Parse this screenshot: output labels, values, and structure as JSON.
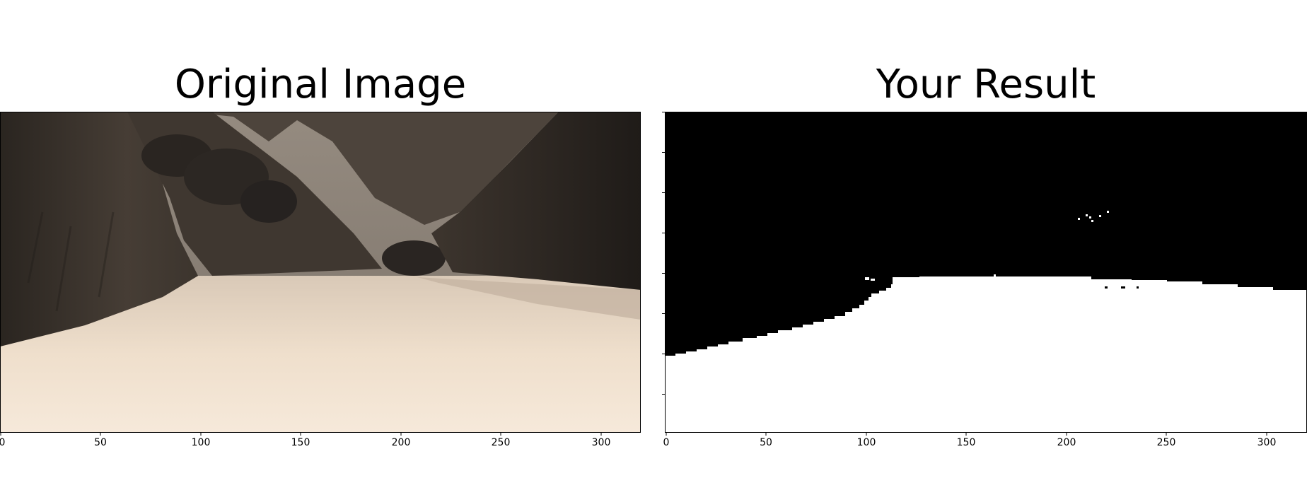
{
  "panels": {
    "left": {
      "title": "Original Image",
      "x_ticks": [
        "0",
        "50",
        "100",
        "150",
        "200",
        "250",
        "300"
      ]
    },
    "right": {
      "title": "Your Result",
      "x_ticks": [
        "0",
        "50",
        "100",
        "150",
        "200",
        "250",
        "300"
      ]
    }
  },
  "colors": {
    "sky": "#8c8276",
    "cliff_dark": "#2e2924",
    "cliff_mid": "#4a413a",
    "ground": "#efdfcd",
    "ground_shadow": "#c9b8a5",
    "mask_black": "#000000",
    "mask_white": "#ffffff"
  }
}
